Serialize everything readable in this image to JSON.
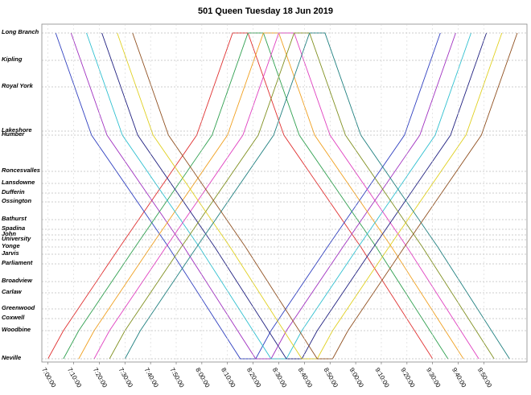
{
  "chart_data": {
    "type": "line",
    "title": "501 Queen  Tuesday 18 Jun 2019",
    "xlim": [
      417.6,
      606.8
    ],
    "xticks": [
      {
        "value": 420,
        "label": "7:00:00"
      },
      {
        "value": 430,
        "label": "7:10:00"
      },
      {
        "value": 440,
        "label": "7:20:00"
      },
      {
        "value": 450,
        "label": "7:30:00"
      },
      {
        "value": 460,
        "label": "7:40:00"
      },
      {
        "value": 470,
        "label": "7:50:00"
      },
      {
        "value": 480,
        "label": "8:00:00"
      },
      {
        "value": 490,
        "label": "8:10:00"
      },
      {
        "value": 500,
        "label": "8:20:00"
      },
      {
        "value": 510,
        "label": "8:30:00"
      },
      {
        "value": 520,
        "label": "8:40:00"
      },
      {
        "value": 530,
        "label": "8:50:00"
      },
      {
        "value": 540,
        "label": "9:00:00"
      },
      {
        "value": 550,
        "label": "9:10:00"
      },
      {
        "value": 560,
        "label": "9:20:00"
      },
      {
        "value": 570,
        "label": "9:30:00"
      },
      {
        "value": 580,
        "label": "9:40:00"
      },
      {
        "value": 590,
        "label": "9:50:00"
      }
    ],
    "ylim": [
      420,
      0
    ],
    "yticks": [
      {
        "value": 11,
        "label": "Long Branch"
      },
      {
        "value": 45,
        "label": "Kipling"
      },
      {
        "value": 78,
        "label": "Royal York"
      },
      {
        "value": 133,
        "label": "Lakeshore"
      },
      {
        "value": 138,
        "label": "Humber"
      },
      {
        "value": 183,
        "label": "Roncesvalles"
      },
      {
        "value": 198,
        "label": "Lansdowne"
      },
      {
        "value": 210,
        "label": "Dufferin"
      },
      {
        "value": 221,
        "label": "Ossington"
      },
      {
        "value": 243,
        "label": "Bathurst"
      },
      {
        "value": 255,
        "label": "Spadina"
      },
      {
        "value": 262,
        "label": "John"
      },
      {
        "value": 268,
        "label": "University"
      },
      {
        "value": 277,
        "label": "Yonge"
      },
      {
        "value": 286,
        "label": "Jarvis"
      },
      {
        "value": 298,
        "label": "Parliament"
      },
      {
        "value": 320,
        "label": "Broadview"
      },
      {
        "value": 334,
        "label": "Carlaw"
      },
      {
        "value": 354,
        "label": "Greenwood"
      },
      {
        "value": 366,
        "label": "Coxwell"
      },
      {
        "value": 381,
        "label": "Woodbine"
      },
      {
        "value": 416,
        "label": "Neville"
      }
    ],
    "grid": true,
    "series": [
      {
        "color": "#e03030",
        "x": [
          420,
          426,
          448,
          478,
          492,
          498,
          512,
          542,
          570
        ],
        "values": [
          416,
          381,
          277,
          138,
          11,
          11,
          138,
          277,
          416
        ]
      },
      {
        "color": "#3040c0",
        "x": [
          423,
          437,
          467,
          495,
          501,
          507,
          529,
          559,
          573
        ],
        "values": [
          11,
          138,
          277,
          416,
          416,
          381,
          277,
          138,
          11
        ]
      },
      {
        "color": "#30a050",
        "x": [
          426,
          432,
          454,
          484,
          498,
          504,
          518,
          548,
          576
        ],
        "values": [
          416,
          381,
          277,
          138,
          11,
          11,
          138,
          277,
          416
        ]
      },
      {
        "color": "#a030c0",
        "x": [
          429,
          443,
          473,
          501,
          507,
          513,
          535,
          565,
          579
        ],
        "values": [
          11,
          138,
          277,
          416,
          416,
          381,
          277,
          138,
          11
        ]
      },
      {
        "color": "#f0a020",
        "x": [
          432,
          438,
          460,
          490,
          504,
          510,
          524,
          554,
          582
        ],
        "values": [
          416,
          381,
          277,
          138,
          11,
          11,
          138,
          277,
          416
        ]
      },
      {
        "color": "#30c0d0",
        "x": [
          435,
          449,
          479,
          507,
          513,
          519,
          541,
          571,
          585
        ],
        "values": [
          11,
          138,
          277,
          416,
          416,
          381,
          277,
          138,
          11
        ]
      },
      {
        "color": "#e040c0",
        "x": [
          438,
          444,
          466,
          496,
          510,
          516,
          530,
          560,
          588
        ],
        "values": [
          416,
          381,
          277,
          138,
          11,
          11,
          138,
          277,
          416
        ]
      },
      {
        "color": "#202080",
        "x": [
          441,
          455,
          485,
          513,
          519,
          525,
          547,
          577,
          591
        ],
        "values": [
          11,
          138,
          277,
          416,
          416,
          381,
          277,
          138,
          11
        ]
      },
      {
        "color": "#809020",
        "x": [
          444,
          450,
          472,
          502,
          516,
          522,
          536,
          566,
          594
        ],
        "values": [
          416,
          381,
          277,
          138,
          11,
          11,
          138,
          277,
          416
        ]
      },
      {
        "color": "#e0d020",
        "x": [
          447,
          461,
          491,
          519,
          525,
          531,
          553,
          583,
          597
        ],
        "values": [
          11,
          138,
          277,
          416,
          416,
          381,
          277,
          138,
          11
        ]
      },
      {
        "color": "#208080",
        "x": [
          450,
          456,
          478,
          508,
          522,
          528,
          542,
          572,
          600
        ],
        "values": [
          416,
          381,
          277,
          138,
          11,
          11,
          138,
          277,
          416
        ]
      },
      {
        "color": "#905020",
        "x": [
          453,
          467,
          497,
          525,
          531,
          537,
          559,
          589,
          603
        ],
        "values": [
          11,
          138,
          277,
          416,
          416,
          381,
          277,
          138,
          11
        ]
      }
    ]
  }
}
